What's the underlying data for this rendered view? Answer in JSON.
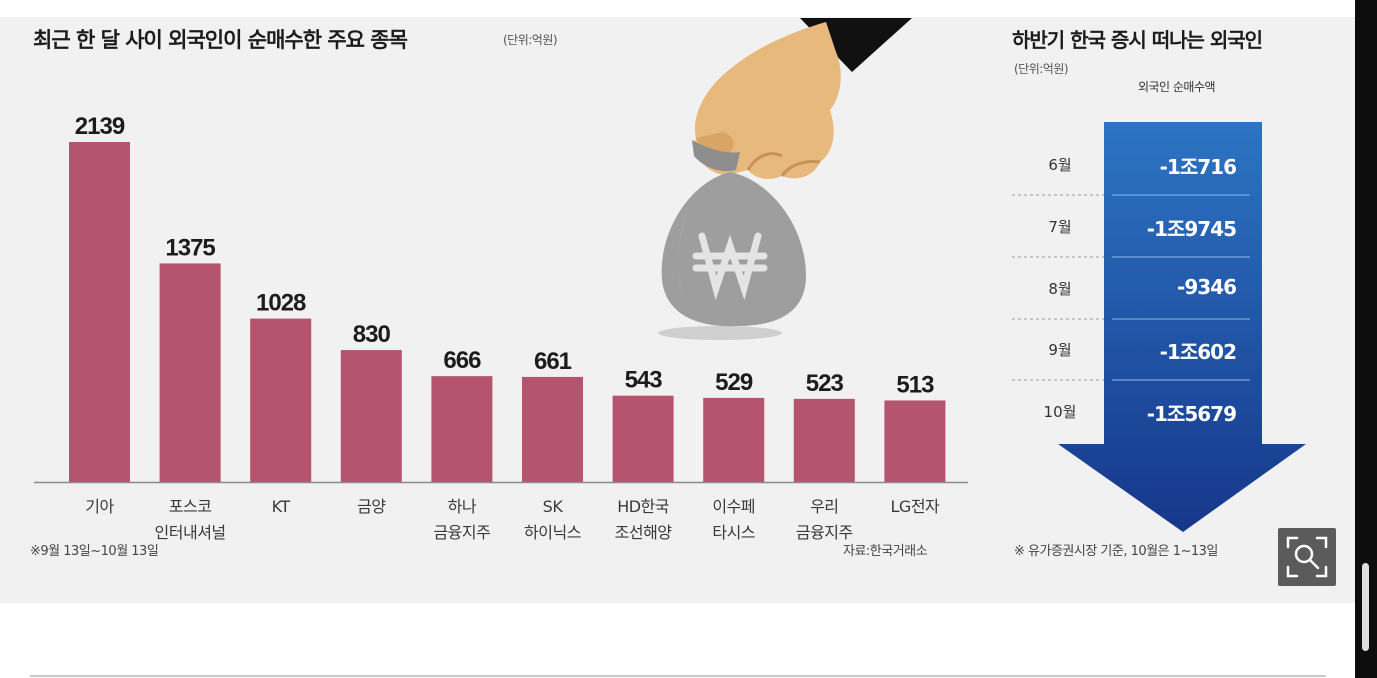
{
  "left_panel": {
    "title": "최근 한 달 사이 외국인이 순매수한 주요 종목",
    "unit": "(단위:억원)",
    "note": "※9월 13일~10월 13일",
    "source": "자료:한국거래소"
  },
  "right_panel": {
    "title": "하반기 한국 증시 떠나는 외국인",
    "unit": "(단위:억원)",
    "column_header": "외국인 순매수액",
    "note": "※ 유가증권시장 기준, 10월은 1~13일"
  },
  "colors": {
    "bar": "#b5546f",
    "arrow_top": "#2d74c4",
    "arrow_bottom": "#16378a",
    "background": "#f1f1f1"
  },
  "icons": [
    "won-money-bag-icon",
    "hand-icon",
    "zoom-icon"
  ],
  "chart_data": [
    {
      "type": "bar",
      "title": "최근 한 달 사이 외국인이 순매수한 주요 종목",
      "unit": "억원",
      "categories": [
        [
          "기아"
        ],
        [
          "포스코",
          "인터내셔널"
        ],
        [
          "KT"
        ],
        [
          "금양"
        ],
        [
          "하나",
          "금융지주"
        ],
        [
          "SK",
          "하이닉스"
        ],
        [
          "HD한국",
          "조선해양"
        ],
        [
          "이수페",
          "타시스"
        ],
        [
          "우리",
          "금융지주"
        ],
        [
          "LG전자"
        ]
      ],
      "values": [
        2139,
        1375,
        1028,
        830,
        666,
        661,
        543,
        529,
        523,
        513
      ],
      "value_labels": [
        "2139",
        "1375",
        "1028",
        "830",
        "666",
        "661",
        "543",
        "529",
        "523",
        "513"
      ],
      "ylim": [
        0,
        2139
      ],
      "grid": false,
      "legend": "none"
    },
    {
      "type": "table",
      "title": "하반기 한국 증시 떠나는 외국인",
      "unit": "억원",
      "column": "외국인 순매수액",
      "rows": [
        {
          "month": "6월",
          "label": "-1조716",
          "value": -10716
        },
        {
          "month": "7월",
          "label": "-1조9745",
          "value": -19745
        },
        {
          "month": "8월",
          "label": "-9346",
          "value": -9346
        },
        {
          "month": "9월",
          "label": "-1조602",
          "value": -10602
        },
        {
          "month": "10월",
          "label": "-1조5679",
          "value": -15679
        }
      ]
    }
  ]
}
